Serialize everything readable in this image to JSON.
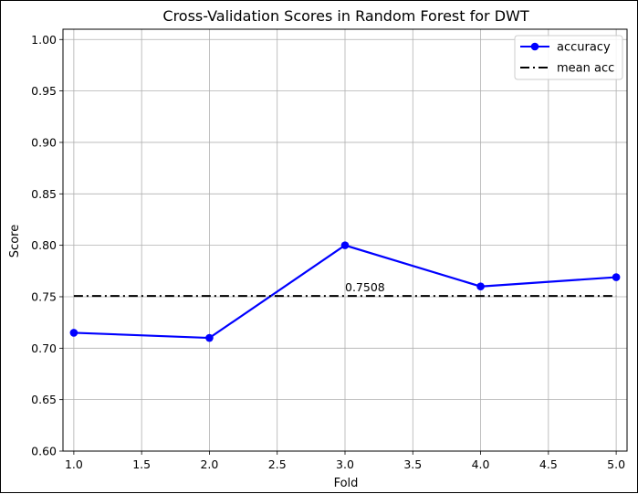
{
  "chart_data": {
    "type": "line",
    "title": "Cross-Validation Scores in Random Forest for DWT",
    "xlabel": "Fold",
    "ylabel": "Score",
    "xlim": [
      0.92,
      5.08
    ],
    "ylim": [
      0.6,
      1.01
    ],
    "x_ticks": [
      "1.0",
      "1.5",
      "2.0",
      "2.5",
      "3.0",
      "3.5",
      "4.0",
      "4.5",
      "5.0"
    ],
    "y_ticks": [
      "0.60",
      "0.65",
      "0.70",
      "0.75",
      "0.80",
      "0.85",
      "0.90",
      "0.95",
      "1.00"
    ],
    "grid": true,
    "legend_position": "top-right",
    "series": [
      {
        "name": "accuracy",
        "color": "#0000ff",
        "style": "solid-with-circle-markers",
        "x": [
          1,
          2,
          3,
          4,
          5
        ],
        "y": [
          0.715,
          0.71,
          0.8,
          0.76,
          0.769
        ]
      },
      {
        "name": "mean acc",
        "color": "#000000",
        "style": "dash-dot",
        "x": [
          1,
          5
        ],
        "y": [
          0.7508,
          0.7508
        ]
      }
    ],
    "annotations": [
      {
        "text": "0.7508",
        "x": 3.0,
        "y": 0.7508
      }
    ]
  }
}
